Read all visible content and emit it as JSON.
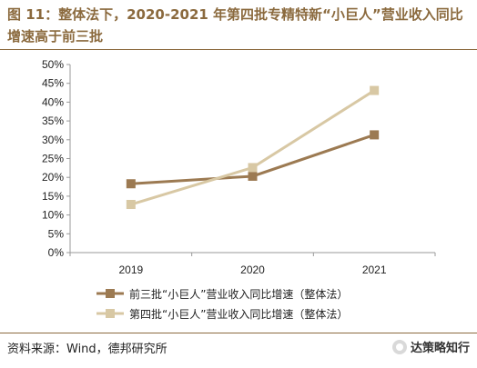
{
  "chart_data": {
    "type": "line",
    "title": "图 11：整体法下，2020-2021 年第四批专精特新“小巨人”营业收入同比增速高于前三批",
    "categories": [
      "2019",
      "2020",
      "2021"
    ],
    "ylim": [
      0,
      50
    ],
    "y_ticks": [
      "0%",
      "5%",
      "10%",
      "15%",
      "20%",
      "25%",
      "30%",
      "35%",
      "40%",
      "45%",
      "50%"
    ],
    "y_tick_values": [
      0,
      5,
      10,
      15,
      20,
      25,
      30,
      35,
      40,
      45,
      50
    ],
    "unit": "%",
    "grid": false,
    "legend_position": "bottom",
    "series": [
      {
        "name": "前三批“小巨人”营业收入同比增速（整体法）",
        "values": [
          18.3,
          20.3,
          31.3
        ],
        "color": "#9C7A52"
      },
      {
        "name": "第四批“小巨人”营业收入同比增速（整体法）",
        "values": [
          12.8,
          22.6,
          43.1
        ],
        "color": "#D8C8A4"
      }
    ]
  },
  "source": "资料来源：Wind，德邦研究所",
  "watermark": "达策略知行"
}
